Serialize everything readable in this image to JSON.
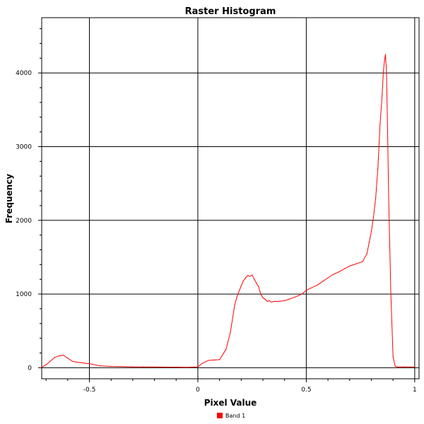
{
  "chart_data": {
    "type": "line",
    "title": "Raster Histogram",
    "xlabel": "Pixel Value",
    "ylabel": "Frequency",
    "xlim": [
      -0.72,
      1.02
    ],
    "ylim": [
      -150,
      4750
    ],
    "x_ticks": [
      -0.5,
      0,
      0.5,
      1
    ],
    "x_tick_labels": [
      "-0.5",
      "0",
      "0.5",
      "1"
    ],
    "y_ticks": [
      0,
      1000,
      2000,
      3000,
      4000
    ],
    "y_tick_labels": [
      "0",
      "1000",
      "2000",
      "3000",
      "4000"
    ],
    "grid": true,
    "legend_position": "bottom",
    "series": [
      {
        "name": "Band 1",
        "color": "#ff0000",
        "x": [
          -0.72,
          -0.7,
          -0.68,
          -0.66,
          -0.64,
          -0.62,
          -0.6,
          -0.58,
          -0.56,
          -0.54,
          -0.52,
          -0.5,
          -0.45,
          -0.4,
          -0.35,
          -0.3,
          -0.25,
          -0.2,
          -0.15,
          -0.1,
          -0.05,
          0.0,
          0.02,
          0.05,
          0.08,
          0.1,
          0.13,
          0.15,
          0.17,
          0.18,
          0.2,
          0.21,
          0.22,
          0.23,
          0.24,
          0.25,
          0.26,
          0.27,
          0.28,
          0.29,
          0.3,
          0.31,
          0.32,
          0.33,
          0.34,
          0.35,
          0.37,
          0.4,
          0.42,
          0.45,
          0.48,
          0.5,
          0.52,
          0.55,
          0.58,
          0.6,
          0.62,
          0.65,
          0.68,
          0.7,
          0.72,
          0.74,
          0.76,
          0.78,
          0.79,
          0.8,
          0.81,
          0.82,
          0.83,
          0.84,
          0.85,
          0.855,
          0.86,
          0.865,
          0.87,
          0.875,
          0.88,
          0.89,
          0.9,
          0.91,
          0.92,
          0.95,
          1.0
        ],
        "values": [
          5,
          40,
          90,
          140,
          160,
          170,
          130,
          90,
          75,
          70,
          60,
          55,
          25,
          18,
          15,
          12,
          10,
          10,
          8,
          8,
          5,
          10,
          60,
          100,
          105,
          110,
          250,
          480,
          850,
          960,
          1110,
          1180,
          1220,
          1250,
          1240,
          1260,
          1200,
          1150,
          1100,
          1000,
          950,
          930,
          900,
          910,
          890,
          900,
          900,
          910,
          930,
          960,
          1000,
          1050,
          1080,
          1120,
          1180,
          1220,
          1260,
          1300,
          1350,
          1380,
          1400,
          1420,
          1440,
          1550,
          1700,
          1850,
          2050,
          2300,
          2700,
          3300,
          3700,
          4000,
          4150,
          4250,
          4000,
          3200,
          2300,
          1000,
          150,
          20,
          10,
          10,
          10
        ]
      }
    ]
  }
}
